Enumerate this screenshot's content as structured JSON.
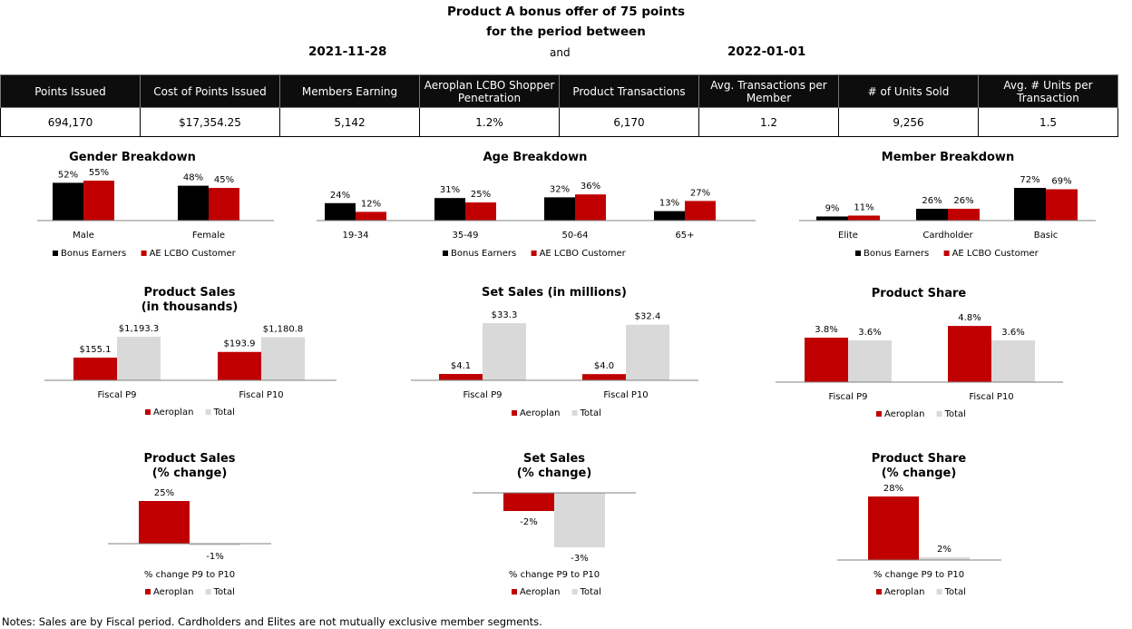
{
  "header": {
    "title_line1": "Product A bonus offer of 75 points",
    "title_line2": "for the period between",
    "start_date": "2021-11-28",
    "and_label": "and",
    "end_date": "2022-01-01"
  },
  "kpis": [
    {
      "label": "Points Issued",
      "value": "694,170"
    },
    {
      "label": "Cost of Points Issued",
      "value": "$17,354.25"
    },
    {
      "label": "Members Earning",
      "value": "5,142"
    },
    {
      "label": "Aeroplan LCBO Shopper Penetration",
      "value": "1.2%"
    },
    {
      "label": "Product Transactions",
      "value": "6,170"
    },
    {
      "label": "Avg. Transactions per Member",
      "value": "1.2"
    },
    {
      "label": "# of Units Sold",
      "value": "9,256"
    },
    {
      "label": "Avg. # Units per Transaction",
      "value": "1.5"
    }
  ],
  "colors": {
    "black": "#000000",
    "red": "#c00000",
    "gray": "#d9d9d9"
  },
  "chart_data": [
    {
      "id": "gender",
      "type": "bar",
      "title": [
        "Gender Breakdown"
      ],
      "categories": [
        "Male",
        "Female"
      ],
      "series": [
        {
          "name": "Bonus Earners",
          "color": "#000000",
          "values": [
            52,
            48
          ],
          "labels": [
            "52%",
            "48%"
          ]
        },
        {
          "name": "AE LCBO Customer",
          "color": "#c00000",
          "values": [
            55,
            45
          ],
          "labels": [
            "55%",
            "45%"
          ]
        }
      ],
      "ylim": [
        0,
        100
      ],
      "legend_position": "bottom"
    },
    {
      "id": "age",
      "type": "bar",
      "title": [
        "Age Breakdown"
      ],
      "categories": [
        "19-34",
        "35-49",
        "50-64",
        "65+"
      ],
      "series": [
        {
          "name": "Bonus Earners",
          "color": "#000000",
          "values": [
            24,
            31,
            32,
            13
          ],
          "labels": [
            "24%",
            "31%",
            "32%",
            "13%"
          ]
        },
        {
          "name": "AE LCBO Customer",
          "color": "#c00000",
          "values": [
            12,
            25,
            36,
            27
          ],
          "labels": [
            "12%",
            "25%",
            "36%",
            "27%"
          ]
        }
      ],
      "ylim": [
        0,
        100
      ],
      "legend_position": "bottom"
    },
    {
      "id": "member",
      "type": "bar",
      "title": [
        "Member Breakdown"
      ],
      "categories": [
        "Elite",
        "Cardholder",
        "Basic"
      ],
      "series": [
        {
          "name": "Bonus Earners",
          "color": "#000000",
          "values": [
            9,
            26,
            72
          ],
          "labels": [
            "9%",
            "26%",
            "72%"
          ]
        },
        {
          "name": "AE LCBO Customer",
          "color": "#c00000",
          "values": [
            11,
            26,
            69
          ],
          "labels": [
            "11%",
            "26%",
            "69%"
          ]
        }
      ],
      "ylim": [
        0,
        100
      ],
      "legend_position": "bottom"
    },
    {
      "id": "psales",
      "type": "bar",
      "title": [
        "Product Sales",
        "(in thousands)"
      ],
      "categories": [
        "Fiscal P9",
        "Fiscal P10"
      ],
      "series": [
        {
          "name": "Aeroplan",
          "color": "#c00000",
          "values": [
            155.1,
            193.9
          ],
          "labels": [
            "$155.1",
            "$193.9"
          ]
        },
        {
          "name": "Total",
          "color": "#d9d9d9",
          "values": [
            1193.3,
            1180.8
          ],
          "labels": [
            "$1,193.3",
            "$1,180.8"
          ]
        }
      ],
      "ylim": [
        0,
        1193.3
      ],
      "legend_position": "bottom"
    },
    {
      "id": "ssales",
      "type": "bar",
      "title": [
        "Set Sales (in millions)"
      ],
      "categories": [
        "Fiscal P9",
        "Fiscal P10"
      ],
      "series": [
        {
          "name": "Aeroplan",
          "color": "#c00000",
          "values": [
            4.1,
            4.0
          ],
          "labels": [
            "$4.1",
            "$4.0"
          ]
        },
        {
          "name": "Total",
          "color": "#d9d9d9",
          "values": [
            33.3,
            32.4
          ],
          "labels": [
            "$33.3",
            "$32.4"
          ]
        }
      ],
      "ylim": [
        0,
        33.3
      ],
      "legend_position": "bottom"
    },
    {
      "id": "pshare",
      "type": "bar",
      "title": [
        "Product Share"
      ],
      "categories": [
        "Fiscal P9",
        "Fiscal P10"
      ],
      "series": [
        {
          "name": "Aeroplan",
          "color": "#c00000",
          "values": [
            3.8,
            4.8
          ],
          "labels": [
            "3.8%",
            "4.8%"
          ]
        },
        {
          "name": "Total",
          "color": "#d9d9d9",
          "values": [
            3.6,
            3.6
          ],
          "labels": [
            "3.6%",
            "3.6%"
          ]
        }
      ],
      "ylim": [
        0,
        4.8
      ],
      "legend_position": "bottom"
    },
    {
      "id": "psales_chg",
      "type": "bar",
      "title": [
        "Product Sales",
        "(% change)"
      ],
      "categories": [
        "% change P9 to P10"
      ],
      "series": [
        {
          "name": "Aeroplan",
          "color": "#c00000",
          "values": [
            25
          ],
          "labels": [
            "25%"
          ]
        },
        {
          "name": "Total",
          "color": "#d9d9d9",
          "values": [
            -1
          ],
          "labels": [
            "-1%"
          ]
        }
      ],
      "ylim": [
        -1,
        25
      ],
      "legend_position": "bottom"
    },
    {
      "id": "ssales_chg",
      "type": "bar",
      "title": [
        "Set Sales",
        "(% change)"
      ],
      "categories": [
        "% change P9 to P10"
      ],
      "series": [
        {
          "name": "Aeroplan",
          "color": "#c00000",
          "values": [
            -2
          ],
          "labels": [
            "-2%"
          ]
        },
        {
          "name": "Total",
          "color": "#d9d9d9",
          "values": [
            -3
          ],
          "labels": [
            "-3%"
          ]
        }
      ],
      "ylim": [
        -3,
        0
      ],
      "legend_position": "bottom"
    },
    {
      "id": "pshare_chg",
      "type": "bar",
      "title": [
        "Product Share",
        "(% change)"
      ],
      "categories": [
        "% change P9 to P10"
      ],
      "series": [
        {
          "name": "Aeroplan",
          "color": "#c00000",
          "values": [
            28
          ],
          "labels": [
            "28%"
          ]
        },
        {
          "name": "Total",
          "color": "#d9d9d9",
          "values": [
            2
          ],
          "labels": [
            "2%"
          ]
        }
      ],
      "ylim": [
        0,
        28
      ],
      "legend_position": "bottom"
    }
  ],
  "notes": "Notes: Sales are by Fiscal period. Cardholders and Elites are not mutually exclusive member segments."
}
